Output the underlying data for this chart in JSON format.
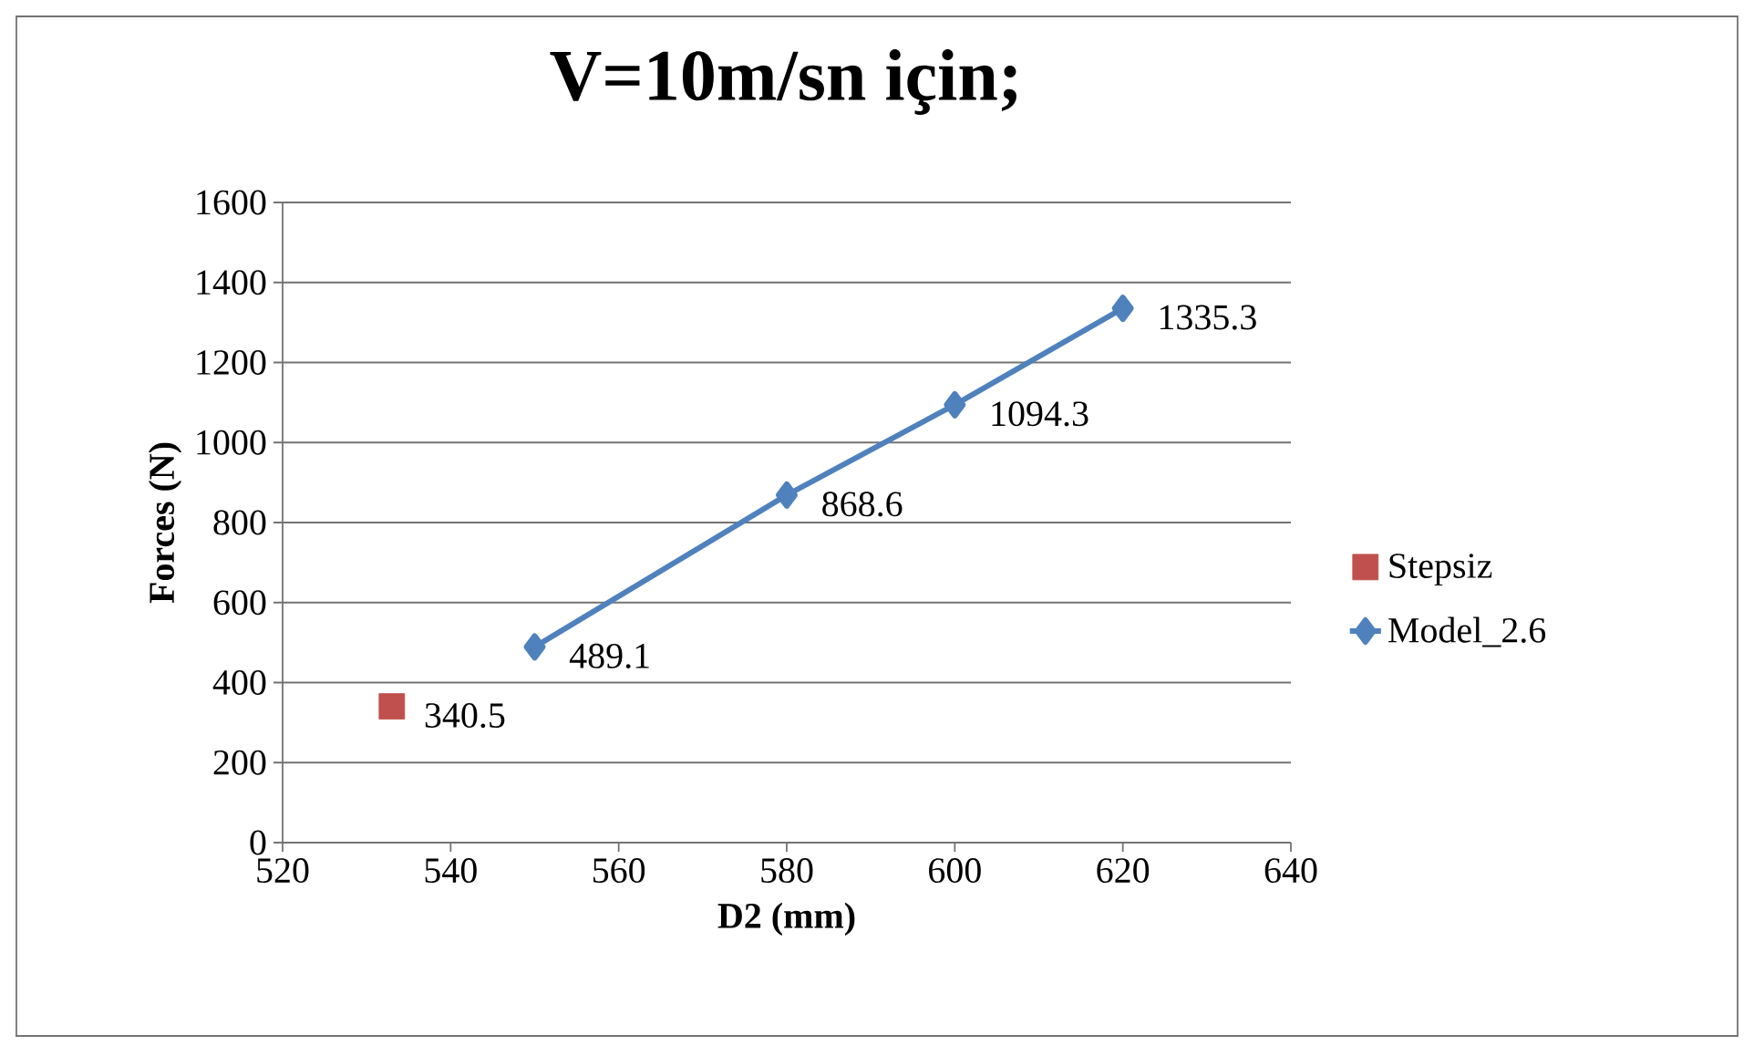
{
  "chart_data": {
    "type": "line",
    "title": "V=10m/sn için;",
    "xlabel": "D2  (mm)",
    "ylabel": "Forces (N)",
    "xlim": [
      520,
      640
    ],
    "xticks": [
      520,
      540,
      560,
      580,
      600,
      620,
      640
    ],
    "ylim": [
      0,
      1600
    ],
    "yticks": [
      0,
      200,
      400,
      600,
      800,
      1000,
      1200,
      1400,
      1600
    ],
    "grid": "y",
    "legend": "right",
    "data_labels": true,
    "series": [
      {
        "name": "Stepsiz",
        "type": "scatter",
        "marker": "square",
        "color": "#c0504d",
        "x": [
          533
        ],
        "values": [
          340.5
        ]
      },
      {
        "name": "Model_2.6",
        "type": "line",
        "marker": "diamond",
        "color": "#4f81bd",
        "x": [
          550,
          580,
          600,
          620
        ],
        "values": [
          489.1,
          868.6,
          1094.3,
          1335.3
        ]
      }
    ]
  }
}
